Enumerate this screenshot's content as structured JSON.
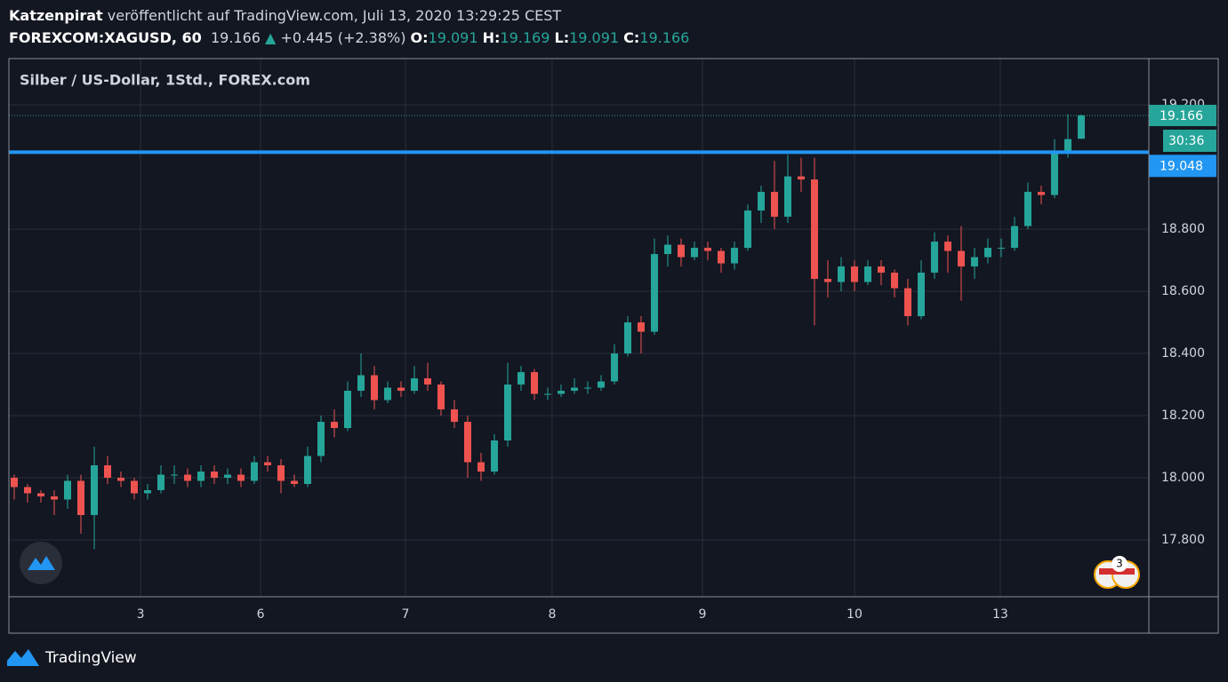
{
  "header": {
    "author": "Katzenpirat",
    "published": "veröffentlicht auf TradingView.com, Juli 13, 2020 13:29:25 CEST",
    "symbol": "FOREXCOM:XAGUSD, 60",
    "change": "+0.445 (+2.38%)",
    "o_label": "O:",
    "h_label": "H:",
    "l_label": "L:",
    "c_label": "C:"
  },
  "footer": {
    "brand": "TradingView"
  },
  "chart_data": {
    "type": "candlestick",
    "title": "Silber / US-Dollar, 1Std., FOREX.com",
    "up_color": "#26a69a",
    "down_color": "#ef5350",
    "candles": [
      [
        18.0,
        18.01,
        17.93,
        17.97
      ],
      [
        17.97,
        17.98,
        17.92,
        17.95
      ],
      [
        17.95,
        17.96,
        17.92,
        17.94
      ],
      [
        17.94,
        17.96,
        17.88,
        17.93
      ],
      [
        17.93,
        18.01,
        17.9,
        17.99
      ],
      [
        17.99,
        18.01,
        17.82,
        17.88
      ],
      [
        17.88,
        18.1,
        17.77,
        18.04
      ],
      [
        18.04,
        18.07,
        17.98,
        18.0
      ],
      [
        18.0,
        18.02,
        17.97,
        17.99
      ],
      [
        17.99,
        18.0,
        17.93,
        17.95
      ],
      [
        17.95,
        17.98,
        17.93,
        17.96
      ],
      [
        17.96,
        18.04,
        17.95,
        18.01
      ],
      [
        18.01,
        18.04,
        17.98,
        18.01
      ],
      [
        18.01,
        18.03,
        17.97,
        17.99
      ],
      [
        17.99,
        18.04,
        17.97,
        18.02
      ],
      [
        18.02,
        18.04,
        17.98,
        18.0
      ],
      [
        18.0,
        18.03,
        17.98,
        18.01
      ],
      [
        18.01,
        18.03,
        17.97,
        17.99
      ],
      [
        17.99,
        18.07,
        17.98,
        18.05
      ],
      [
        18.05,
        18.07,
        18.02,
        18.04
      ],
      [
        18.04,
        18.06,
        17.95,
        17.99
      ],
      [
        17.99,
        18.01,
        17.97,
        17.98
      ],
      [
        17.98,
        18.1,
        17.97,
        18.07
      ],
      [
        18.07,
        18.2,
        18.05,
        18.18
      ],
      [
        18.18,
        18.22,
        18.13,
        18.16
      ],
      [
        18.16,
        18.31,
        18.15,
        18.28
      ],
      [
        18.28,
        18.4,
        18.26,
        18.33
      ],
      [
        18.33,
        18.36,
        18.22,
        18.25
      ],
      [
        18.25,
        18.31,
        18.24,
        18.29
      ],
      [
        18.29,
        18.31,
        18.26,
        18.28
      ],
      [
        18.28,
        18.36,
        18.27,
        18.32
      ],
      [
        18.32,
        18.37,
        18.28,
        18.3
      ],
      [
        18.3,
        18.31,
        18.2,
        18.22
      ],
      [
        18.22,
        18.25,
        18.16,
        18.18
      ],
      [
        18.18,
        18.2,
        18.0,
        18.05
      ],
      [
        18.05,
        18.08,
        17.99,
        18.02
      ],
      [
        18.02,
        18.14,
        18.01,
        18.12
      ],
      [
        18.12,
        18.37,
        18.1,
        18.3
      ],
      [
        18.3,
        18.36,
        18.28,
        18.34
      ],
      [
        18.34,
        18.35,
        18.25,
        18.27
      ],
      [
        18.27,
        18.29,
        18.25,
        18.27
      ],
      [
        18.27,
        18.3,
        18.26,
        18.28
      ],
      [
        18.28,
        18.32,
        18.27,
        18.29
      ],
      [
        18.29,
        18.31,
        18.27,
        18.29
      ],
      [
        18.29,
        18.33,
        18.28,
        18.31
      ],
      [
        18.31,
        18.43,
        18.3,
        18.4
      ],
      [
        18.4,
        18.52,
        18.39,
        18.5
      ],
      [
        18.5,
        18.52,
        18.4,
        18.47
      ],
      [
        18.47,
        18.77,
        18.46,
        18.72
      ],
      [
        18.72,
        18.78,
        18.68,
        18.75
      ],
      [
        18.75,
        18.77,
        18.68,
        18.71
      ],
      [
        18.71,
        18.76,
        18.7,
        18.74
      ],
      [
        18.74,
        18.76,
        18.7,
        18.73
      ],
      [
        18.73,
        18.74,
        18.66,
        18.69
      ],
      [
        18.69,
        18.76,
        18.67,
        18.74
      ],
      [
        18.74,
        18.88,
        18.73,
        18.86
      ],
      [
        18.86,
        18.94,
        18.82,
        18.92
      ],
      [
        18.92,
        19.02,
        18.8,
        18.84
      ],
      [
        18.84,
        19.04,
        18.82,
        18.97
      ],
      [
        18.97,
        19.03,
        18.92,
        18.96
      ],
      [
        18.96,
        19.03,
        18.49,
        18.64
      ],
      [
        18.64,
        18.7,
        18.58,
        18.63
      ],
      [
        18.63,
        18.71,
        18.6,
        18.68
      ],
      [
        18.68,
        18.7,
        18.6,
        18.63
      ],
      [
        18.63,
        18.7,
        18.62,
        18.68
      ],
      [
        18.68,
        18.7,
        18.62,
        18.66
      ],
      [
        18.66,
        18.67,
        18.58,
        18.61
      ],
      [
        18.61,
        18.64,
        18.49,
        18.52
      ],
      [
        18.52,
        18.7,
        18.51,
        18.66
      ],
      [
        18.66,
        18.79,
        18.64,
        18.76
      ],
      [
        18.76,
        18.78,
        18.66,
        18.73
      ],
      [
        18.73,
        18.81,
        18.57,
        18.68
      ],
      [
        18.68,
        18.74,
        18.64,
        18.71
      ],
      [
        18.71,
        18.77,
        18.69,
        18.74
      ],
      [
        18.74,
        18.77,
        18.71,
        18.74
      ],
      [
        18.74,
        18.84,
        18.73,
        18.81
      ],
      [
        18.81,
        18.95,
        18.8,
        18.92
      ],
      [
        18.92,
        18.94,
        18.88,
        18.91
      ],
      [
        18.91,
        19.09,
        18.9,
        19.05
      ],
      [
        19.05,
        19.17,
        19.03,
        19.09
      ],
      [
        19.091,
        19.169,
        19.091,
        19.166
      ]
    ],
    "xlim": [
      -0.4,
      85.07
    ],
    "xticks": [
      {
        "value": 9.47,
        "label": "3"
      },
      {
        "value": 18.47,
        "label": "6"
      },
      {
        "value": 29.33,
        "label": "7"
      },
      {
        "value": 40.33,
        "label": "8"
      },
      {
        "value": 51.6,
        "label": "9"
      },
      {
        "value": 63,
        "label": "10"
      },
      {
        "value": 73.93,
        "label": "13"
      }
    ],
    "ylim": [
      17.617,
      19.349
    ],
    "yticks": [
      {
        "value": 17.8,
        "label": "17.800"
      },
      {
        "value": 18.0,
        "label": "18.000"
      },
      {
        "value": 18.2,
        "label": "18.200"
      },
      {
        "value": 18.4,
        "label": "18.400"
      },
      {
        "value": 18.6,
        "label": "18.600"
      },
      {
        "value": 18.8,
        "label": "18.800"
      },
      {
        "value": 19.2,
        "label": "19.200"
      }
    ],
    "grid": true,
    "hline": {
      "value": 19.048,
      "label": "19.048",
      "color": "#2196f3"
    },
    "countdown": "30:36",
    "events_badge": "3"
  }
}
